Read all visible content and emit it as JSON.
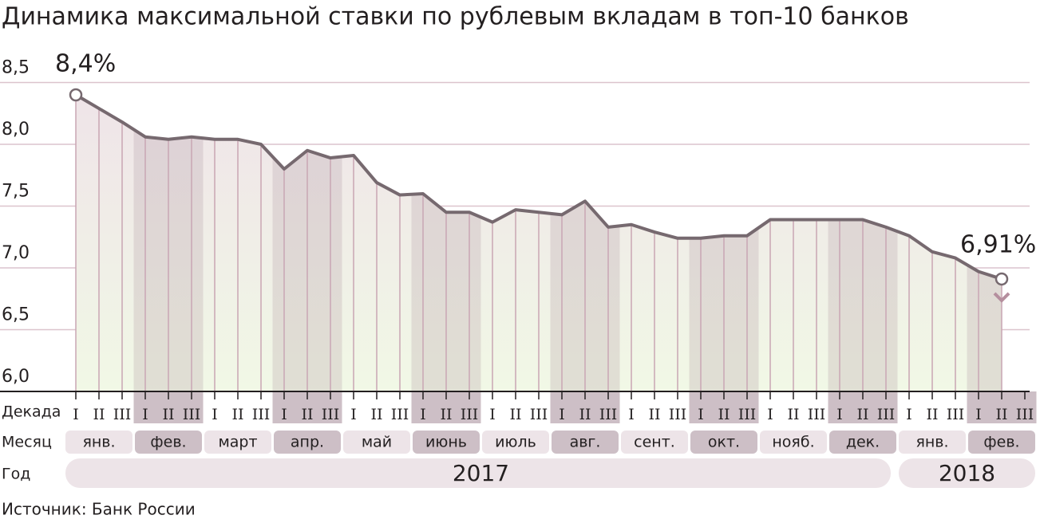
{
  "chart_data": {
    "type": "line",
    "title": "Динамика максимальной ставки по рублевым вкладам в топ-10 банков",
    "source": "Источник: Банк России",
    "row_labels": [
      "Декада",
      "Месяц",
      "Год"
    ],
    "decades": [
      "I",
      "II",
      "III"
    ],
    "years": [
      {
        "label": "2017",
        "months": [
          "янв.",
          "фев.",
          "март",
          "апр.",
          "май",
          "июнь",
          "июль",
          "авг.",
          "сент.",
          "окт.",
          "нояб.",
          "дек."
        ]
      },
      {
        "label": "2018",
        "months": [
          "янв.",
          "фев."
        ]
      }
    ],
    "values": [
      8.4,
      8.29,
      8.18,
      8.06,
      8.04,
      8.06,
      8.04,
      8.04,
      8.0,
      7.8,
      7.95,
      7.89,
      7.91,
      7.69,
      7.59,
      7.6,
      7.45,
      7.45,
      7.37,
      7.47,
      7.45,
      7.43,
      7.54,
      7.33,
      7.35,
      7.29,
      7.24,
      7.24,
      7.26,
      7.26,
      7.39,
      7.39,
      7.39,
      7.39,
      7.39,
      7.33,
      7.26,
      7.13,
      7.08,
      6.97,
      6.91
    ],
    "value_labels": [
      "8,4%",
      null,
      null,
      null,
      null,
      null,
      null,
      null,
      null,
      null,
      null,
      null,
      null,
      null,
      null,
      null,
      null,
      null,
      null,
      null,
      null,
      null,
      null,
      null,
      null,
      null,
      null,
      null,
      null,
      null,
      null,
      null,
      null,
      null,
      null,
      null,
      null,
      null,
      null,
      null,
      "6,91%"
    ],
    "color": "#76696f",
    "ylim": [
      6.0,
      8.5
    ],
    "yticks": [
      {
        "value": 6.0,
        "label": "6,0"
      },
      {
        "value": 6.5,
        "label": "6,5"
      },
      {
        "value": 7.0,
        "label": "7,0"
      },
      {
        "value": 7.5,
        "label": "7,5"
      },
      {
        "value": 8.0,
        "label": "8,0"
      },
      {
        "value": 8.5,
        "label": "8,5"
      }
    ],
    "grid": true
  }
}
